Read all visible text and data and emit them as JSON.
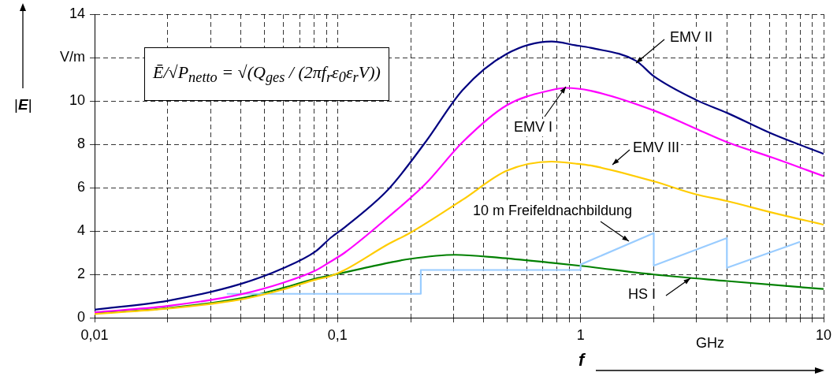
{
  "chart_data": {
    "type": "line",
    "xlabel": "f",
    "ylabel": "|E|",
    "log": "x",
    "grid": true,
    "legend": false,
    "marker": "none",
    "line_style": "solid",
    "xlim": [
      0.01,
      10
    ],
    "ylim": [
      0,
      14
    ],
    "xticks": [
      {
        "value": 0.01,
        "label": "0,01"
      },
      {
        "value": 0.02,
        "label": null
      },
      {
        "value": 0.03,
        "label": null
      },
      {
        "value": 0.04,
        "label": null
      },
      {
        "value": 0.05,
        "label": null
      },
      {
        "value": 0.06,
        "label": null
      },
      {
        "value": 0.07,
        "label": null
      },
      {
        "value": 0.08,
        "label": null
      },
      {
        "value": 0.09,
        "label": null
      },
      {
        "value": 0.1,
        "label": "0,1"
      },
      {
        "value": 0.2,
        "label": null
      },
      {
        "value": 0.3,
        "label": null
      },
      {
        "value": 0.4,
        "label": null
      },
      {
        "value": 0.5,
        "label": null
      },
      {
        "value": 0.6,
        "label": null
      },
      {
        "value": 0.7,
        "label": null
      },
      {
        "value": 0.8,
        "label": null
      },
      {
        "value": 0.9,
        "label": null
      },
      1,
      {
        "value": 2,
        "label": null
      },
      {
        "value": 3,
        "label": null
      },
      {
        "value": 4,
        "label": null
      },
      {
        "value": 5,
        "label": null
      },
      {
        "value": 6,
        "label": null
      },
      {
        "value": 7,
        "label": null
      },
      {
        "value": 8,
        "label": null
      },
      {
        "value": 9,
        "label": null
      },
      10
    ],
    "yticks": [
      0,
      2,
      4,
      6,
      8,
      10,
      {
        "value": 12,
        "label": "V/m"
      },
      14
    ],
    "annotations": [
      "Ē/√P$_{netto}$ = √(Q$_{ges}$ / (2πf$_{r}$ε$_{0}$ε$_{r}$V))",
      "GHz"
    ],
    "series": [
      {
        "name": "EMV II",
        "color": "#000080",
        "x": [
          0.01,
          0.02,
          0.04,
          0.06,
          0.081,
          0.094,
          0.107,
          0.162,
          0.23,
          0.327,
          0.497,
          0.76,
          0.95,
          1.1,
          1.69,
          2,
          2.98,
          4,
          6.17,
          10
        ],
        "values": [
          0.37,
          0.78,
          1.56,
          2.29,
          3.05,
          3.7,
          4.17,
          5.93,
          8.1,
          10.5,
          12.17,
          12.74,
          12.57,
          12.45,
          11.85,
          11.14,
          10.05,
          9.45,
          8.47,
          7.56
        ]
      },
      {
        "name": "EMV I",
        "color": "#ff00ff",
        "x": [
          0.01,
          0.02,
          0.04,
          0.06,
          0.081,
          0.094,
          0.107,
          0.162,
          0.23,
          0.327,
          0.497,
          0.76,
          0.87,
          1.1,
          2,
          2.98,
          4,
          6.17,
          10
        ],
        "values": [
          0.25,
          0.54,
          1.08,
          1.62,
          2.17,
          2.6,
          3.0,
          4.65,
          6.17,
          8.1,
          9.8,
          10.5,
          10.6,
          10.47,
          9.56,
          8.72,
          8.1,
          7.38,
          6.53
        ]
      },
      {
        "name": "EMV III",
        "color": "#ffcc00",
        "x": [
          0.01,
          0.02,
          0.04,
          0.06,
          0.081,
          0.094,
          0.107,
          0.162,
          0.198,
          0.327,
          0.497,
          0.76,
          0.95,
          1.1,
          2,
          2.98,
          4,
          6.17,
          10
        ],
        "values": [
          0.17,
          0.42,
          0.84,
          1.31,
          1.75,
          1.93,
          2.2,
          3.4,
          3.9,
          5.44,
          6.78,
          7.2,
          7.11,
          7.02,
          6.29,
          5.69,
          5.38,
          4.84,
          4.29
        ]
      },
      {
        "name": "10 m Freifeldnachbildung",
        "color": "#99ccff",
        "x": [
          0.035,
          0.22,
          0.22,
          1,
          1,
          2,
          2,
          4,
          4,
          8
        ],
        "values": [
          1.1,
          1.1,
          2.2,
          2.2,
          2.45,
          3.9,
          2.4,
          3.67,
          2.3,
          3.5
        ]
      },
      {
        "name": "HS I",
        "color": "#008000",
        "x": [
          0.01,
          0.02,
          0.04,
          0.06,
          0.081,
          0.094,
          0.162,
          0.198,
          0.305,
          0.46,
          0.76,
          1,
          2,
          4,
          10
        ],
        "values": [
          0.2,
          0.44,
          0.9,
          1.38,
          1.8,
          1.95,
          2.53,
          2.71,
          2.9,
          2.77,
          2.53,
          2.39,
          1.99,
          1.69,
          1.32
        ]
      }
    ]
  }
}
